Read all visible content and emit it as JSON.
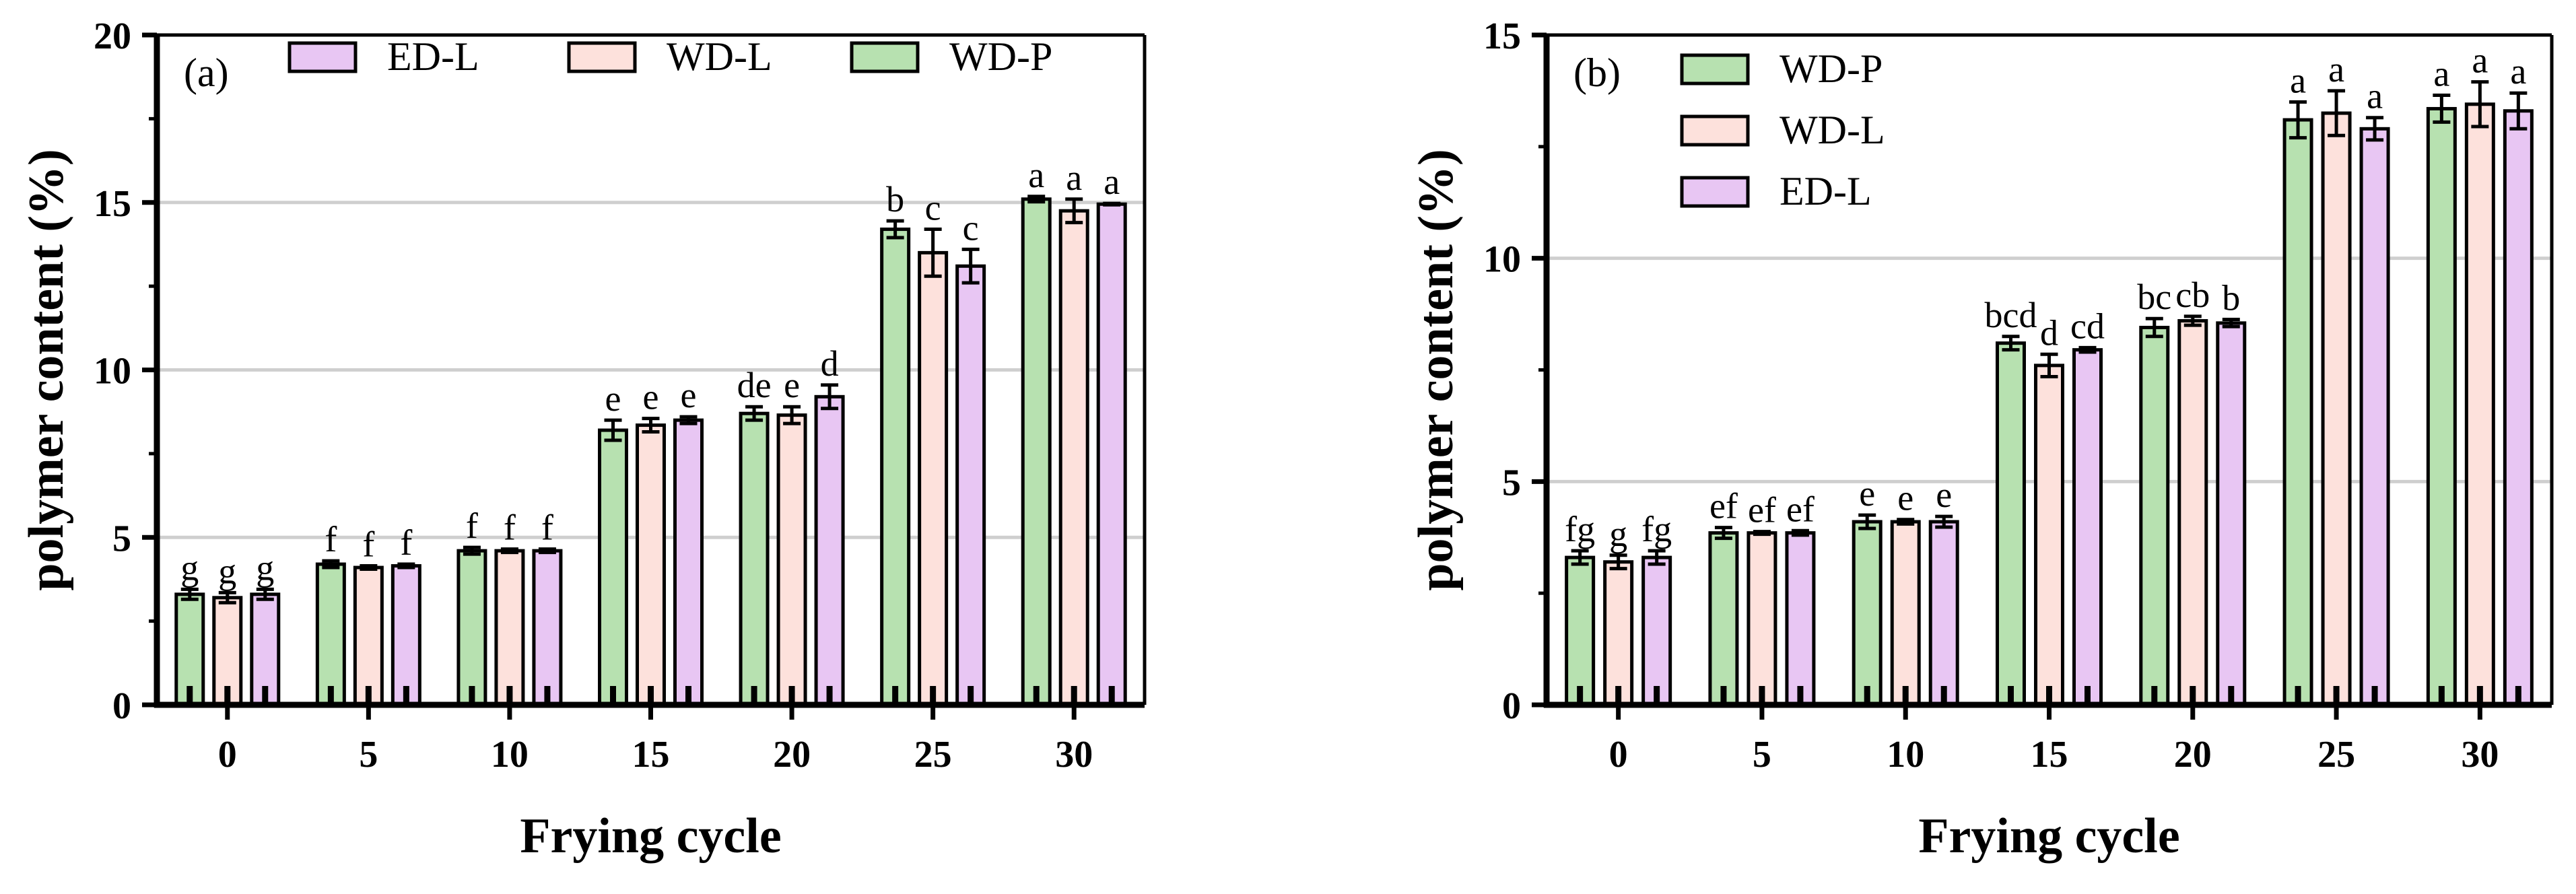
{
  "series_colors": {
    "WD-P": "#b7e1b0",
    "WD-L": "#fde1dc",
    "ED-L": "#e8c6f3"
  },
  "chart_data": [
    {
      "type": "bar",
      "panel_label": "(a)",
      "xlabel": "Frying cycle",
      "ylabel": "polymer content (%)",
      "ylim": [
        0,
        20
      ],
      "yticks": [
        0,
        5,
        10,
        15,
        20
      ],
      "grid": true,
      "legend": {
        "placement": "top",
        "layout": "horizontal",
        "order": [
          "ED-L",
          "WD-L",
          "WD-P"
        ]
      },
      "categories": [
        "0",
        "5",
        "10",
        "15",
        "20",
        "25",
        "30"
      ],
      "series": [
        {
          "name": "WD-P",
          "values": [
            3.3,
            4.2,
            4.6,
            8.2,
            8.7,
            14.2,
            15.1
          ],
          "errors": [
            0.15,
            0.1,
            0.1,
            0.3,
            0.2,
            0.25,
            0.08
          ],
          "labels": [
            "g",
            "f",
            "f",
            "e",
            "de",
            "b",
            "a"
          ]
        },
        {
          "name": "WD-L",
          "values": [
            3.2,
            4.1,
            4.6,
            8.35,
            8.65,
            13.5,
            14.75
          ],
          "errors": [
            0.15,
            0.05,
            0.05,
            0.2,
            0.25,
            0.7,
            0.35
          ],
          "labels": [
            "g",
            "f",
            "f",
            "e",
            "e",
            "c",
            "a"
          ]
        },
        {
          "name": "ED-L",
          "values": [
            3.3,
            4.15,
            4.6,
            8.5,
            9.2,
            13.1,
            14.95
          ],
          "errors": [
            0.15,
            0.05,
            0.05,
            0.1,
            0.35,
            0.5,
            0.02
          ],
          "labels": [
            "g",
            "f",
            "f",
            "e",
            "d",
            "c",
            "a"
          ]
        }
      ]
    },
    {
      "type": "bar",
      "panel_label": "(b)",
      "xlabel": "Frying cycle",
      "ylabel": "polymer content (%)",
      "ylim": [
        0,
        15
      ],
      "yticks": [
        0,
        5,
        10,
        15
      ],
      "grid": true,
      "legend": {
        "placement": "top-left",
        "layout": "vertical",
        "order": [
          "WD-P",
          "WD-L",
          "ED-L"
        ]
      },
      "categories": [
        "0",
        "5",
        "10",
        "15",
        "20",
        "25",
        "30"
      ],
      "series": [
        {
          "name": "WD-P",
          "values": [
            3.3,
            3.85,
            4.1,
            8.1,
            8.45,
            13.1,
            13.35
          ],
          "errors": [
            0.15,
            0.12,
            0.15,
            0.15,
            0.2,
            0.4,
            0.3
          ],
          "labels": [
            "fg",
            "ef",
            "e",
            "bcd",
            "bc",
            "a",
            "a"
          ]
        },
        {
          "name": "WD-L",
          "values": [
            3.2,
            3.85,
            4.1,
            7.6,
            8.6,
            13.25,
            13.45
          ],
          "errors": [
            0.15,
            0.03,
            0.05,
            0.25,
            0.1,
            0.5,
            0.5
          ],
          "labels": [
            "g",
            "ef",
            "e",
            "d",
            "cb",
            "a",
            "a"
          ]
        },
        {
          "name": "ED-L",
          "values": [
            3.3,
            3.85,
            4.1,
            7.95,
            8.55,
            12.9,
            13.3
          ],
          "errors": [
            0.15,
            0.05,
            0.12,
            0.05,
            0.08,
            0.25,
            0.4
          ],
          "labels": [
            "fg",
            "ef",
            "e",
            "cd",
            "b",
            "a",
            "a"
          ]
        }
      ]
    }
  ]
}
